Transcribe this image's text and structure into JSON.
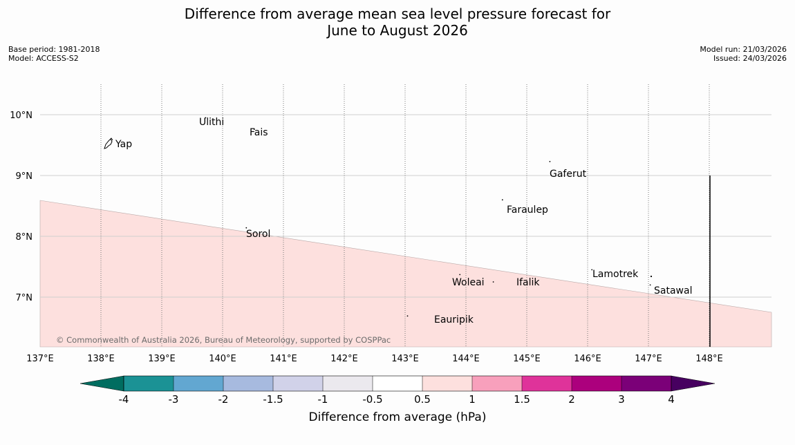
{
  "title": {
    "line1": "Difference from average mean sea level pressure forecast for",
    "line2": "June to August 2026"
  },
  "meta": {
    "base_period": "Base period: 1981-2018",
    "model": "Model: ACCESS-S2",
    "model_run": "Model run: 21/03/2026",
    "issued": "Issued: 24/03/2026"
  },
  "map": {
    "lon_labels": [
      "137°E",
      "138°E",
      "139°E",
      "140°E",
      "141°E",
      "142°E",
      "143°E",
      "144°E",
      "145°E",
      "146°E",
      "147°E",
      "148°E"
    ],
    "lat_labels": [
      "10°N",
      "9°N",
      "8°N",
      "7°N"
    ],
    "copyright": "© Commonwealth of Australia 2026, Bureau of Meteorology, supported by COSPPac",
    "anomaly_band": {
      "category": "0.5 to 1",
      "color": "#fde0de"
    },
    "places": [
      {
        "name": "Yap",
        "lon": 138.24,
        "lat": 9.53
      },
      {
        "name": "Ulithi",
        "lon": 139.72,
        "lat": 9.95
      },
      {
        "name": "Fais",
        "lon": 140.52,
        "lat": 9.76
      },
      {
        "name": "Gaferut",
        "lon": 145.38,
        "lat": 9.23
      },
      {
        "name": "Faraulep",
        "lon": 144.6,
        "lat": 8.6
      },
      {
        "name": "Sorol",
        "lon": 140.39,
        "lat": 8.14
      },
      {
        "name": "Lamotrek",
        "lon": 146.07,
        "lat": 7.45
      },
      {
        "name": "Woleai",
        "lon": 143.9,
        "lat": 7.37
      },
      {
        "name": "Ifalik",
        "lon": 144.45,
        "lat": 7.25
      },
      {
        "name": "Satawal",
        "lon": 147.03,
        "lat": 7.2
      },
      {
        "name": "Eauripik",
        "lon": 143.04,
        "lat": 6.69
      }
    ]
  },
  "colorbar": {
    "title": "Difference from average (hPa)",
    "ticks": [
      "-4",
      "-3",
      "-2",
      "-1.5",
      "-1",
      "-0.5",
      "0.5",
      "1",
      "1.5",
      "2",
      "3",
      "4"
    ],
    "colors": [
      "#1b9295",
      "#62a7d1",
      "#a7badf",
      "#d1d2e9",
      "#ebe9ee",
      "#ffffff",
      "#fde0de",
      "#f8a0bc",
      "#df339a",
      "#ac007d",
      "#7b0078"
    ],
    "under_color": "#006d60",
    "over_color": "#470060"
  }
}
